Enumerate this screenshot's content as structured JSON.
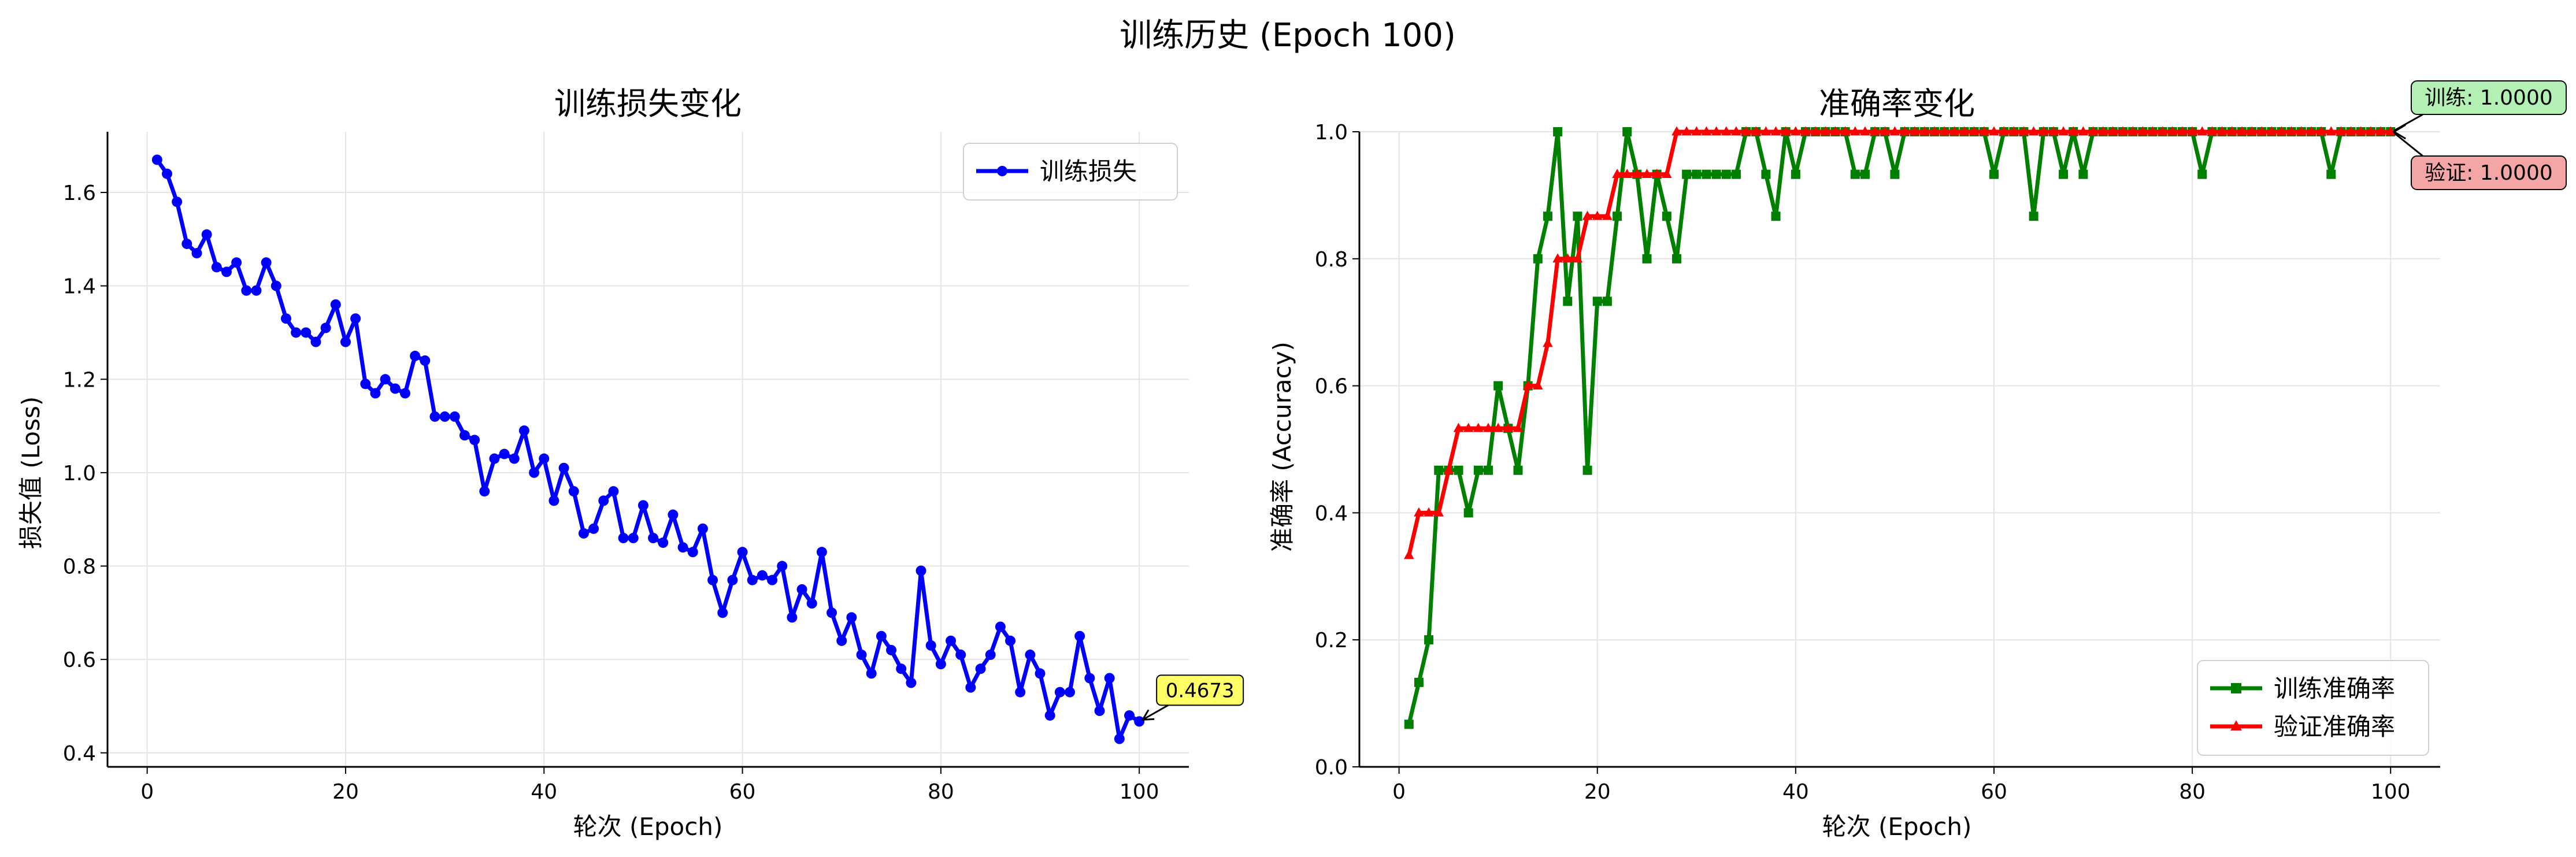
{
  "suptitle": "训练历史 (Epoch 100)",
  "chart_data": [
    {
      "type": "line",
      "title": "训练损失变化",
      "xlabel": "轮次 (Epoch)",
      "ylabel": "损失值 (Loss)",
      "xlim": [
        -4,
        105
      ],
      "ylim": [
        0.37,
        1.73
      ],
      "xticks": [
        "0",
        "20",
        "40",
        "60",
        "80",
        "100"
      ],
      "yticks": [
        "0.4",
        "0.6",
        "0.8",
        "1.0",
        "1.2",
        "1.4",
        "1.6"
      ],
      "grid": true,
      "legend_position": "top-right",
      "x": [
        1,
        2,
        3,
        4,
        5,
        6,
        7,
        8,
        9,
        10,
        11,
        12,
        13,
        14,
        15,
        16,
        17,
        18,
        19,
        20,
        21,
        22,
        23,
        24,
        25,
        26,
        27,
        28,
        29,
        30,
        31,
        32,
        33,
        34,
        35,
        36,
        37,
        38,
        39,
        40,
        41,
        42,
        43,
        44,
        45,
        46,
        47,
        48,
        49,
        50,
        51,
        52,
        53,
        54,
        55,
        56,
        57,
        58,
        59,
        60,
        61,
        62,
        63,
        64,
        65,
        66,
        67,
        68,
        69,
        70,
        71,
        72,
        73,
        74,
        75,
        76,
        77,
        78,
        79,
        80,
        81,
        82,
        83,
        84,
        85,
        86,
        87,
        88,
        89,
        90,
        91,
        92,
        93,
        94,
        95,
        96,
        97,
        98,
        99,
        100
      ],
      "series": [
        {
          "name": "训练损失",
          "color": "#0000ff",
          "marker": "circle",
          "values": [
            1.67,
            1.64,
            1.58,
            1.49,
            1.47,
            1.51,
            1.44,
            1.43,
            1.45,
            1.39,
            1.39,
            1.45,
            1.4,
            1.33,
            1.3,
            1.3,
            1.28,
            1.31,
            1.36,
            1.28,
            1.33,
            1.19,
            1.17,
            1.2,
            1.18,
            1.17,
            1.25,
            1.24,
            1.12,
            1.12,
            1.12,
            1.08,
            1.07,
            0.96,
            1.03,
            1.04,
            1.03,
            1.09,
            1.0,
            1.03,
            0.94,
            1.01,
            0.96,
            0.87,
            0.88,
            0.94,
            0.96,
            0.86,
            0.86,
            0.93,
            0.86,
            0.85,
            0.91,
            0.84,
            0.83,
            0.88,
            0.77,
            0.7,
            0.77,
            0.83,
            0.77,
            0.78,
            0.77,
            0.8,
            0.69,
            0.75,
            0.72,
            0.83,
            0.7,
            0.64,
            0.69,
            0.61,
            0.57,
            0.65,
            0.62,
            0.58,
            0.55,
            0.79,
            0.63,
            0.59,
            0.64,
            0.61,
            0.54,
            0.58,
            0.61,
            0.67,
            0.64,
            0.53,
            0.61,
            0.57,
            0.48,
            0.53,
            0.53,
            0.65,
            0.56,
            0.49,
            0.56,
            0.43,
            0.48,
            0.4673
          ]
        }
      ],
      "annotations": [
        {
          "text": "0.4673",
          "x": 100,
          "y": 0.4673,
          "background": "#ffff66"
        }
      ]
    },
    {
      "type": "line",
      "title": "准确率变化",
      "xlabel": "轮次 (Epoch)",
      "ylabel": "准确率 (Accuracy)",
      "xlim": [
        -4,
        105
      ],
      "ylim": [
        0.0,
        1.0
      ],
      "xticks": [
        "0",
        "20",
        "40",
        "60",
        "80",
        "100"
      ],
      "yticks": [
        "0.0",
        "0.2",
        "0.4",
        "0.6",
        "0.8",
        "1.0"
      ],
      "grid": true,
      "legend_position": "bottom-right",
      "x": [
        1,
        2,
        3,
        4,
        5,
        6,
        7,
        8,
        9,
        10,
        11,
        12,
        13,
        14,
        15,
        16,
        17,
        18,
        19,
        20,
        21,
        22,
        23,
        24,
        25,
        26,
        27,
        28,
        29,
        30,
        31,
        32,
        33,
        34,
        35,
        36,
        37,
        38,
        39,
        40,
        41,
        42,
        43,
        44,
        45,
        46,
        47,
        48,
        49,
        50,
        51,
        52,
        53,
        54,
        55,
        56,
        57,
        58,
        59,
        60,
        61,
        62,
        63,
        64,
        65,
        66,
        67,
        68,
        69,
        70,
        71,
        72,
        73,
        74,
        75,
        76,
        77,
        78,
        79,
        80,
        81,
        82,
        83,
        84,
        85,
        86,
        87,
        88,
        89,
        90,
        91,
        92,
        93,
        94,
        95,
        96,
        97,
        98,
        99,
        100
      ],
      "series": [
        {
          "name": "训练准确率",
          "color": "#008000",
          "marker": "square",
          "values": [
            0.067,
            0.133,
            0.2,
            0.467,
            0.467,
            0.467,
            0.4,
            0.467,
            0.467,
            0.6,
            0.533,
            0.467,
            0.6,
            0.8,
            0.867,
            1.0,
            0.733,
            0.867,
            0.467,
            0.733,
            0.733,
            0.867,
            1.0,
            0.933,
            0.8,
            0.933,
            0.867,
            0.8,
            0.933,
            0.933,
            0.933,
            0.933,
            0.933,
            0.933,
            1.0,
            1.0,
            0.933,
            0.867,
            1.0,
            0.933,
            1.0,
            1.0,
            1.0,
            1.0,
            1.0,
            0.933,
            0.933,
            1.0,
            1.0,
            0.933,
            1.0,
            1.0,
            1.0,
            1.0,
            1.0,
            1.0,
            1.0,
            1.0,
            1.0,
            0.933,
            1.0,
            1.0,
            1.0,
            0.867,
            1.0,
            1.0,
            0.933,
            1.0,
            0.933,
            1.0,
            1.0,
            1.0,
            1.0,
            1.0,
            1.0,
            1.0,
            1.0,
            1.0,
            1.0,
            1.0,
            0.933,
            1.0,
            1.0,
            1.0,
            1.0,
            1.0,
            1.0,
            1.0,
            1.0,
            1.0,
            1.0,
            1.0,
            1.0,
            0.933,
            1.0,
            1.0,
            1.0,
            1.0,
            1.0,
            1.0
          ]
        },
        {
          "name": "验证准确率",
          "color": "#ff0000",
          "marker": "triangle",
          "values": [
            0.333,
            0.4,
            0.4,
            0.4,
            0.467,
            0.533,
            0.533,
            0.533,
            0.533,
            0.533,
            0.533,
            0.533,
            0.6,
            0.6,
            0.667,
            0.8,
            0.8,
            0.8,
            0.867,
            0.867,
            0.867,
            0.933,
            0.933,
            0.933,
            0.933,
            0.933,
            0.933,
            1.0,
            1.0,
            1.0,
            1.0,
            1.0,
            1.0,
            1.0,
            1.0,
            1.0,
            1.0,
            1.0,
            1.0,
            1.0,
            1.0,
            1.0,
            1.0,
            1.0,
            1.0,
            1.0,
            1.0,
            1.0,
            1.0,
            1.0,
            1.0,
            1.0,
            1.0,
            1.0,
            1.0,
            1.0,
            1.0,
            1.0,
            1.0,
            1.0,
            1.0,
            1.0,
            1.0,
            1.0,
            1.0,
            1.0,
            1.0,
            1.0,
            1.0,
            1.0,
            1.0,
            1.0,
            1.0,
            1.0,
            1.0,
            1.0,
            1.0,
            1.0,
            1.0,
            1.0,
            1.0,
            1.0,
            1.0,
            1.0,
            1.0,
            1.0,
            1.0,
            1.0,
            1.0,
            1.0,
            1.0,
            1.0,
            1.0,
            1.0,
            1.0,
            1.0,
            1.0,
            1.0,
            1.0,
            1.0
          ]
        }
      ],
      "annotations": [
        {
          "text": "训练: 1.0000",
          "x": 100,
          "y": 1.0,
          "background": "#b3f0b3"
        },
        {
          "text": "验证: 1.0000",
          "x": 100,
          "y": 1.0,
          "background": "#f4a6a6"
        }
      ]
    }
  ]
}
